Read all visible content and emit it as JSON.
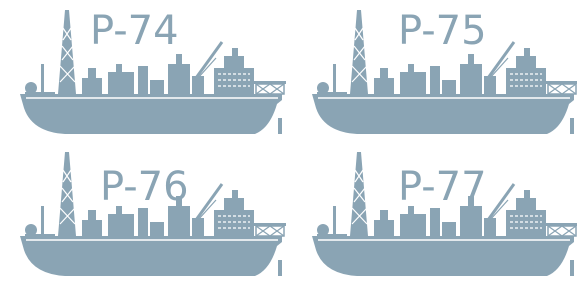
{
  "units": [
    {
      "label": "P-74"
    },
    {
      "label": "P-75"
    },
    {
      "label": "P-76"
    },
    {
      "label": "P-77"
    }
  ]
}
